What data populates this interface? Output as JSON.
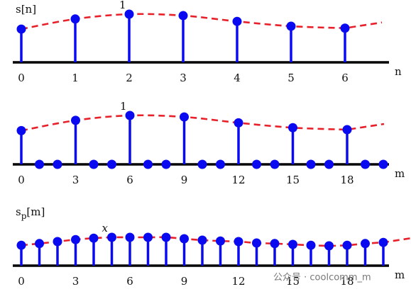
{
  "chart_data": [
    {
      "type": "stem",
      "ylabel": "s[n]",
      "xlabel": "n",
      "peak_label": "1",
      "x": [
        0,
        1,
        2,
        3,
        4,
        5,
        6
      ],
      "values": [
        0.69,
        0.9,
        1,
        0.97,
        0.85,
        0.75,
        0.71
      ],
      "xticks": [
        0,
        1,
        2,
        3,
        4,
        5,
        6
      ],
      "color": "#0a0af0",
      "envelope_color": "#e8202a"
    },
    {
      "type": "stem",
      "ylabel": "",
      "xlabel": "m",
      "peak_label": "1",
      "x": [
        0,
        1,
        2,
        3,
        4,
        5,
        6,
        7,
        8,
        9,
        10,
        11,
        12,
        13,
        14,
        15,
        16,
        17,
        18,
        19,
        20
      ],
      "values": [
        0.69,
        0,
        0,
        0.9,
        0,
        0,
        1,
        0,
        0,
        0.97,
        0,
        0,
        0.85,
        0,
        0,
        0.75,
        0,
        0,
        0.71,
        0,
        0
      ],
      "xticks": [
        0,
        3,
        6,
        9,
        12,
        15,
        18
      ],
      "color": "#0a0af0",
      "envelope_color": "#e8202a"
    },
    {
      "type": "stem",
      "ylabel": {
        "base": "s",
        "sub": "p",
        "rest": "[m]"
      },
      "xlabel": "m",
      "peak_label": "x",
      "x": [
        0,
        1,
        2,
        3,
        4,
        5,
        6,
        7,
        8,
        9,
        10,
        11,
        12,
        13,
        14,
        15,
        16,
        17,
        18,
        19,
        20
      ],
      "values": [
        0.72,
        0.78,
        0.85,
        0.92,
        0.97,
        1,
        1,
        1,
        1,
        0.95,
        0.9,
        0.87,
        0.85,
        0.8,
        0.78,
        0.75,
        0.72,
        0.7,
        0.72,
        0.78,
        0.82
      ],
      "xticks": [
        0,
        3,
        6,
        9,
        12,
        15,
        18
      ],
      "color": "#0a0af0",
      "envelope_color": "#e8202a"
    }
  ],
  "watermark": "公众号 · coolcomm_m"
}
